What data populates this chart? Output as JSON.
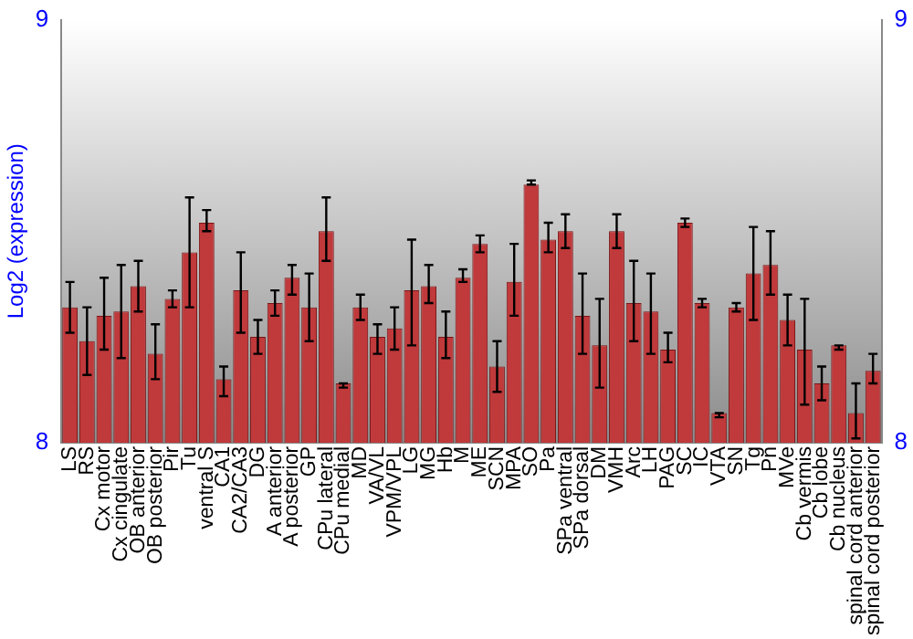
{
  "chart_data": {
    "type": "bar",
    "ylabel": "Log2 (expression)",
    "categories": [
      "LS",
      "RS",
      "Cx motor",
      "Cx cingulate",
      "OB anterior",
      "OB posterior",
      "Pir",
      "Tu",
      "ventral S",
      "CA1",
      "CA2/CA3",
      "DG",
      "A anterior",
      "A posterior",
      "GP",
      "CPu lateral",
      "CPu medial",
      "MD",
      "VA/VL",
      "VPM/VPL",
      "LG",
      "MG",
      "Hb",
      "M",
      "ME",
      "SCN",
      "MPA",
      "SO",
      "Pa",
      "SPa ventral",
      "SPa dorsal",
      "DM",
      "VMH",
      "Arc",
      "LH",
      "PAG",
      "SC",
      "IC",
      "VTA",
      "SN",
      "Tg",
      "Pn",
      "MVe",
      "Cb vermis",
      "Cb lobe",
      "Cb nucleus",
      "spinal cord anterior",
      "spinal cord posterior"
    ],
    "values": [
      8.32,
      8.24,
      8.3,
      8.31,
      8.37,
      8.21,
      8.34,
      8.45,
      8.52,
      8.15,
      8.36,
      8.25,
      8.33,
      8.39,
      8.32,
      8.5,
      8.14,
      8.32,
      8.25,
      8.27,
      8.36,
      8.37,
      8.25,
      8.39,
      8.47,
      8.18,
      8.38,
      8.61,
      8.48,
      8.5,
      8.3,
      8.23,
      8.5,
      8.33,
      8.31,
      8.22,
      8.52,
      8.33,
      8.07,
      8.32,
      8.4,
      8.42,
      8.29,
      8.22,
      8.14,
      8.23,
      8.07,
      8.17
    ],
    "errors": [
      [
        8.26,
        8.38
      ],
      [
        8.16,
        8.32
      ],
      [
        8.22,
        8.39
      ],
      [
        8.2,
        8.42
      ],
      [
        8.31,
        8.43
      ],
      [
        8.15,
        8.28
      ],
      [
        8.32,
        8.36
      ],
      [
        8.32,
        8.58
      ],
      [
        8.5,
        8.55
      ],
      [
        8.11,
        8.18
      ],
      [
        8.26,
        8.45
      ],
      [
        8.21,
        8.29
      ],
      [
        8.3,
        8.36
      ],
      [
        8.35,
        8.42
      ],
      [
        8.24,
        8.4
      ],
      [
        8.43,
        8.58
      ],
      [
        8.13,
        8.14
      ],
      [
        8.29,
        8.35
      ],
      [
        8.21,
        8.28
      ],
      [
        8.22,
        8.32
      ],
      [
        8.23,
        8.48
      ],
      [
        8.33,
        8.42
      ],
      [
        8.2,
        8.31
      ],
      [
        8.38,
        8.41
      ],
      [
        8.45,
        8.49
      ],
      [
        8.12,
        8.24
      ],
      [
        8.3,
        8.47
      ],
      [
        8.61,
        8.62
      ],
      [
        8.45,
        8.52
      ],
      [
        8.46,
        8.54
      ],
      [
        8.21,
        8.4
      ],
      [
        8.13,
        8.34
      ],
      [
        8.46,
        8.54
      ],
      [
        8.24,
        8.43
      ],
      [
        8.21,
        8.4
      ],
      [
        8.19,
        8.26
      ],
      [
        8.51,
        8.53
      ],
      [
        8.32,
        8.34
      ],
      [
        8.06,
        8.07
      ],
      [
        8.31,
        8.33
      ],
      [
        8.29,
        8.51
      ],
      [
        8.35,
        8.5
      ],
      [
        8.23,
        8.35
      ],
      [
        8.09,
        8.34
      ],
      [
        8.1,
        8.18
      ],
      [
        8.22,
        8.23
      ],
      [
        8.01,
        8.14
      ],
      [
        8.14,
        8.21
      ]
    ],
    "color": "#c0393b",
    "ylim": [
      8,
      9
    ],
    "yticks": [
      8,
      9
    ],
    "y2lim": [
      8,
      9
    ],
    "y2ticks": [
      8,
      9
    ],
    "grid": false,
    "legend": false
  }
}
